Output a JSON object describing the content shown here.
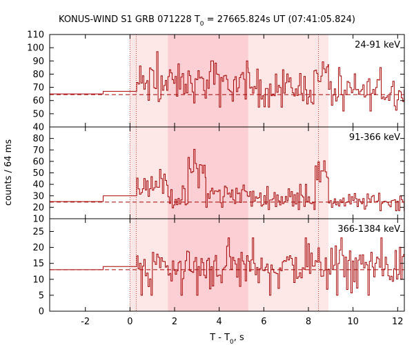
{
  "chart_data": {
    "type": "line",
    "title_prefix": "KONUS-WIND S1 GRB 071228 T",
    "title_sub": "0",
    "title_suffix": " = 27665.824s UT (07:41:05.824)",
    "xlabel_prefix": "T - T",
    "xlabel_sub": "0",
    "xlabel_suffix": ", s",
    "ylabel": "counts / 64 ms",
    "xlim": [
      -3.6,
      12.3
    ],
    "x_ticks": [
      -2,
      0,
      2,
      4,
      6,
      8,
      10,
      12
    ],
    "x_tick_labels": [
      "-2",
      "0",
      "2",
      "4",
      "6",
      "8",
      "10",
      "12"
    ],
    "intervals": {
      "light": [
        [
          0,
          8.9
        ]
      ],
      "dark": [
        [
          1.7,
          5.3
        ]
      ],
      "dotted_lines": [
        0,
        0.28,
        8.45
      ]
    },
    "colors": {
      "line": "#a50000",
      "background_fit": "#a50000",
      "light_band": "#fde7e7",
      "dark_band": "#fbcfd3",
      "dotted": "#c0392b"
    },
    "panels": [
      {
        "label": "24-91 keV",
        "ylim": [
          40,
          110
        ],
        "y_ticks": [
          40,
          50,
          60,
          70,
          80,
          90,
          100,
          110
        ],
        "y_tick_labels": [
          "40",
          "50",
          "60",
          "70",
          "80",
          "90",
          "100",
          "110"
        ],
        "background": 64.5,
        "bg_step": {
          "x0": -3.6,
          "x1": -1.2,
          "level": 65,
          "x2": 0.3,
          "level2": 67
        },
        "segments": [
          {
            "x0": 0.3,
            "x1": 1.7,
            "min": 52,
            "max": 97,
            "mean": 72
          },
          {
            "x0": 1.7,
            "x1": 5.3,
            "min": 55,
            "max": 90,
            "mean": 73
          },
          {
            "x0": 5.3,
            "x1": 8.3,
            "min": 55,
            "max": 88,
            "mean": 70
          },
          {
            "x0": 8.3,
            "x1": 8.9,
            "min": 62,
            "max": 92,
            "mean": 80
          },
          {
            "x0": 8.9,
            "x1": 12.3,
            "min": 52,
            "max": 85,
            "mean": 67
          }
        ]
      },
      {
        "label": "91-366 keV",
        "ylim": [
          10,
          90
        ],
        "y_ticks": [
          10,
          20,
          30,
          40,
          50,
          60,
          70,
          80
        ],
        "y_tick_labels": [
          "10",
          "20",
          "30",
          "40",
          "50",
          "60",
          "70",
          "80"
        ],
        "background": 24.5,
        "bg_step": {
          "x0": -3.6,
          "x1": -1.2,
          "level": 25,
          "x2": 0.3,
          "level2": 30
        },
        "segments": [
          {
            "x0": 0.3,
            "x1": 1.7,
            "min": 28,
            "max": 53,
            "mean": 40
          },
          {
            "x0": 1.7,
            "x1": 2.6,
            "min": 18,
            "max": 40,
            "mean": 28
          },
          {
            "x0": 2.6,
            "x1": 3.4,
            "min": 35,
            "max": 76,
            "mean": 52
          },
          {
            "x0": 3.4,
            "x1": 5.3,
            "min": 20,
            "max": 45,
            "mean": 32
          },
          {
            "x0": 5.3,
            "x1": 8.3,
            "min": 18,
            "max": 40,
            "mean": 28
          },
          {
            "x0": 8.3,
            "x1": 8.9,
            "min": 35,
            "max": 61,
            "mean": 50
          },
          {
            "x0": 8.9,
            "x1": 12.3,
            "min": 17,
            "max": 35,
            "mean": 25
          }
        ]
      },
      {
        "label": "366-1384 keV",
        "ylim": [
          0,
          29
        ],
        "y_ticks": [
          0,
          5,
          10,
          15,
          20,
          25
        ],
        "y_tick_labels": [
          "0",
          "5",
          "10",
          "15",
          "20",
          "25"
        ],
        "background": 13,
        "bg_step": {
          "x0": -3.6,
          "x1": -1.2,
          "level": 13,
          "x2": 0.3,
          "level2": 14
        },
        "segments": [
          {
            "x0": 0.3,
            "x1": 12.3,
            "min": 5,
            "max": 23,
            "mean": 14
          }
        ]
      }
    ]
  }
}
